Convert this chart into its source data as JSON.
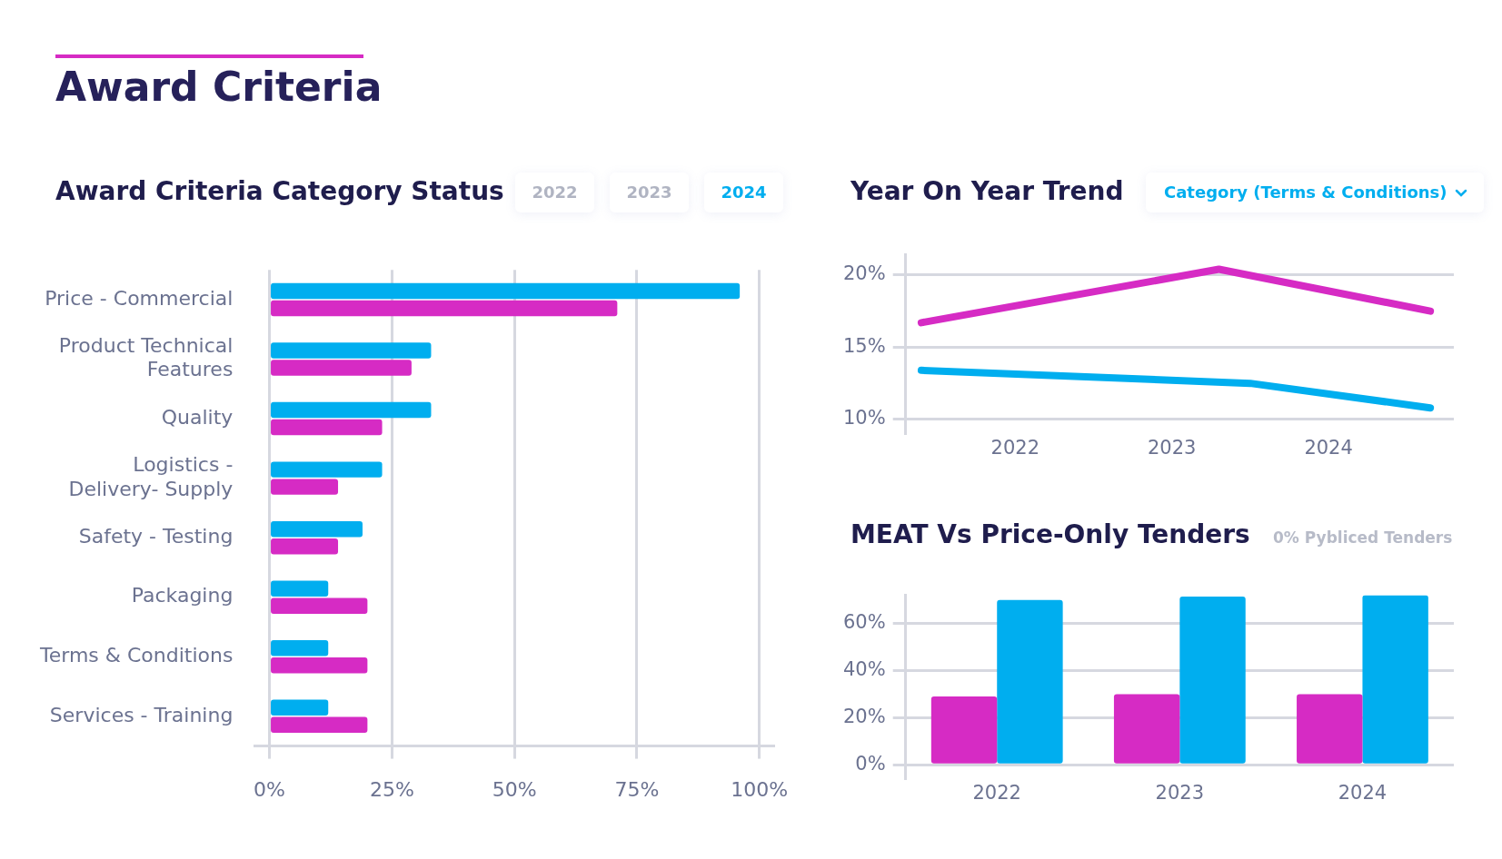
{
  "chart_data": [
    {
      "type": "other",
      "title": "Award Criteria"
    },
    {
      "type": "bar",
      "title": "Award Criteria Category Status",
      "orientation": "horizontal",
      "annotations": [
        "2022",
        "2023",
        "2024"
      ],
      "categories": [
        "Price - Commercial",
        "Product Technical Features",
        "Quality",
        "Logistics - Delivery- Supply",
        "Safety - Testing",
        "Packaging",
        "Terms & Conditions",
        "Services - Training"
      ],
      "series": [
        {
          "color": "#00aeef",
          "values": [
            96,
            33,
            33,
            23,
            19,
            12,
            12,
            12
          ]
        },
        {
          "color": "#d62bc4",
          "values": [
            71,
            29,
            23,
            14,
            14,
            20,
            20,
            20
          ]
        }
      ],
      "xlim": [
        -3,
        103
      ],
      "xticks": [
        {
          "value": 0,
          "label": "0%"
        },
        {
          "value": 25,
          "label": "25%"
        },
        {
          "value": 50,
          "label": "50%"
        },
        {
          "value": 75,
          "label": "75%"
        },
        {
          "value": 100,
          "label": "100%"
        }
      ],
      "grid": "x"
    },
    {
      "type": "line",
      "title": "Year On Year Trend",
      "annotations": [
        "Category (Terms & Conditions)"
      ],
      "marker": "none",
      "series": [
        {
          "color": "#d62bc4",
          "x": [
            2021.4,
            2023.3,
            2024.65
          ],
          "values": [
            16.7,
            20.4,
            17.5
          ]
        },
        {
          "color": "#00aeef",
          "x": [
            2021.4,
            2023.5,
            2024.65
          ],
          "values": [
            13.4,
            12.5,
            10.8
          ]
        }
      ],
      "xlim": [
        2021.3,
        2024.8
      ],
      "xticks": [
        2022,
        2023,
        2024
      ],
      "ylim": [
        9,
        21.4
      ],
      "yticks": [
        {
          "value": 10,
          "label": "10%"
        },
        {
          "value": 15,
          "label": "15%"
        },
        {
          "value": 20,
          "label": "20%"
        }
      ],
      "grid": "y"
    },
    {
      "type": "bar",
      "title": "MEAT Vs Price-Only Tenders",
      "subtitle": "0% Pybliced Tenders",
      "categories": [
        "2022",
        "2023",
        "2024"
      ],
      "series": [
        {
          "color": "#d62bc4",
          "values": [
            29,
            30,
            30
          ]
        },
        {
          "color": "#00aeef",
          "values": [
            70,
            71.5,
            72
          ]
        }
      ],
      "ylim": [
        -6,
        72
      ],
      "yticks": [
        {
          "value": 0,
          "label": "0%"
        },
        {
          "value": 20,
          "label": "20%"
        },
        {
          "value": 40,
          "label": "40%"
        },
        {
          "value": 60,
          "label": "60%"
        }
      ],
      "grid": "y"
    }
  ]
}
